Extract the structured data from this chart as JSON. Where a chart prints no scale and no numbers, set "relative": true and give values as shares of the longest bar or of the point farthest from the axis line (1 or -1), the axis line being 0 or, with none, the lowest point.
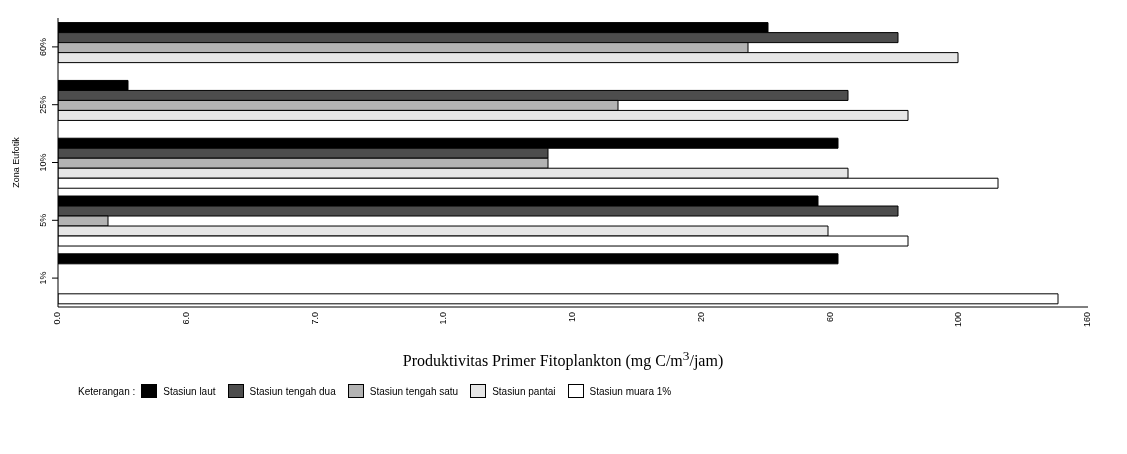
{
  "chart_data": {
    "type": "bar",
    "orientation": "horizontal",
    "relative": true,
    "xlabel": "Produktivitas Primer Fitoplankton (mg C/m$^{3}$/jam)",
    "ylabel": "Zona Eufotik",
    "legend_title": "Keterangan :",
    "legend": "bottom",
    "grid": false,
    "categories": [
      "60%",
      "25%",
      "10%",
      "5%",
      "1%"
    ],
    "series": [
      {
        "name": "Stasiun laut",
        "color": "#000000",
        "values": [
          0.71,
          0.07,
          0.78,
          0.76,
          0.78
        ]
      },
      {
        "name": "Stasiun tengah dua",
        "color": "#4d4d4d",
        "values": [
          0.84,
          0.79,
          0.49,
          0.84,
          null
        ]
      },
      {
        "name": "Stasiun tengah satu",
        "color": "#b3b3b3",
        "values": [
          0.69,
          0.56,
          0.49,
          0.05,
          null
        ]
      },
      {
        "name": "Stasiun pantai",
        "color": "#e6e6e6",
        "values": [
          0.9,
          0.85,
          0.79,
          0.77,
          null
        ]
      },
      {
        "name": "Stasiun muara 1%",
        "color": "#ffffff",
        "values": [
          null,
          null,
          0.94,
          0.85,
          1
        ]
      }
    ],
    "annotations": [
      "0.0",
      "6.0",
      "7.0",
      "1.0",
      "10",
      "20",
      "60",
      "100",
      "160"
    ]
  }
}
